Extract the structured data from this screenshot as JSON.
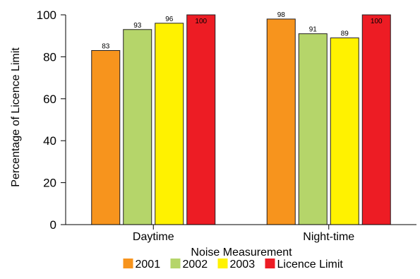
{
  "chart_data": {
    "type": "bar",
    "categories": [
      "Daytime",
      "Night-time"
    ],
    "series": [
      {
        "name": "2001",
        "color": "#f7941d",
        "values": [
          83,
          98
        ]
      },
      {
        "name": "2002",
        "color": "#b5d56a",
        "values": [
          93,
          91
        ]
      },
      {
        "name": "2003",
        "color": "#fff200",
        "values": [
          96,
          89
        ]
      },
      {
        "name": "Licence Limit",
        "color": "#ed1c24",
        "values": [
          100,
          100
        ]
      }
    ],
    "xlabel": "Noise Measurement",
    "ylabel": "Percentage of Licence Limit",
    "ylim": [
      0,
      100
    ],
    "yticks": [
      0,
      20,
      40,
      60,
      80,
      100
    ],
    "data_labels": true,
    "grid": false,
    "legend_position": "bottom"
  }
}
